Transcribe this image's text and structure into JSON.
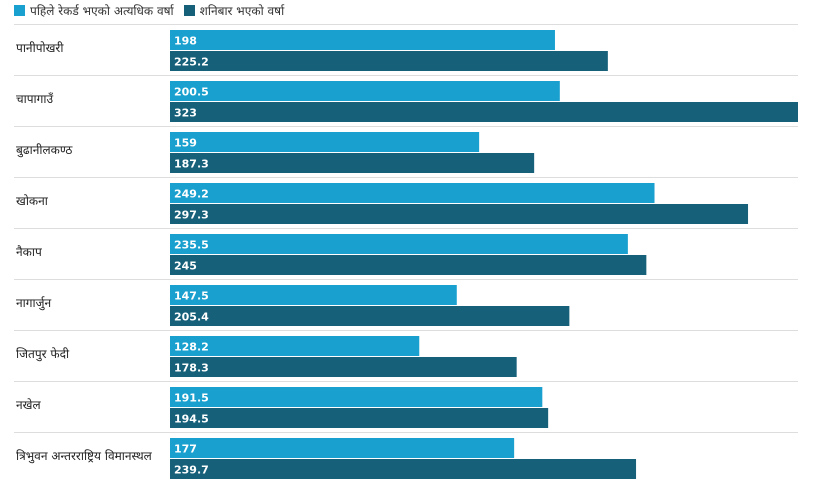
{
  "chart_data": {
    "type": "bar",
    "orientation": "horizontal",
    "legend_position": "top-left",
    "grid": false,
    "xlim": [
      0,
      323
    ],
    "categories": [
      "पानीपोखरी",
      "चापागाउँ",
      "बुढानीलकण्ठ",
      "खोकना",
      "नैकाप",
      "नागार्जुन",
      "जितपुर फेदी",
      "नखेल",
      "त्रिभुवन अन्तरराष्ट्रिय विमानस्थल"
    ],
    "series": [
      {
        "name": "पहिले रेकर्ड भएको अत्यधिक वर्षा",
        "color": "#1aa0cf",
        "values": [
          198,
          200.5,
          159,
          249.2,
          235.5,
          147.5,
          128.2,
          191.5,
          177
        ]
      },
      {
        "name": "शनिबार भएको वर्षा",
        "color": "#16607a",
        "values": [
          225.2,
          323,
          187.3,
          297.3,
          245,
          205.4,
          178.3,
          194.5,
          239.7
        ]
      }
    ]
  }
}
